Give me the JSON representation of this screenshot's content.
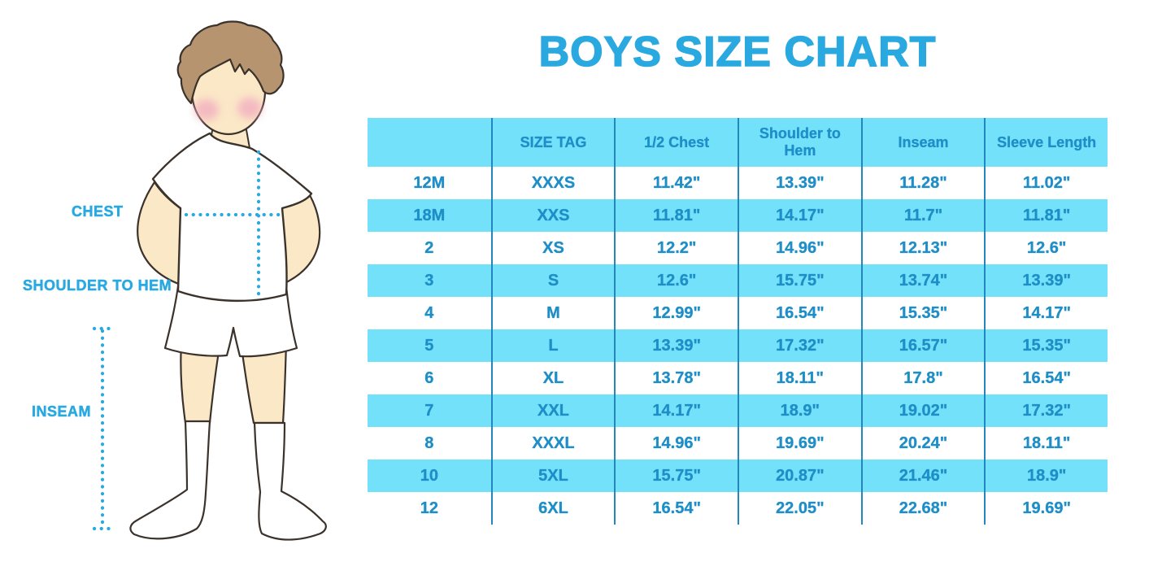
{
  "page": {
    "title": "BOYS SIZE CHART"
  },
  "theme": {
    "accent": "#29A9E0",
    "band": "#73E1FA",
    "line": "#2187BE",
    "text": "#1E8EC8",
    "skin": "#FBE8C7",
    "hair": "#B79470",
    "cheek": "#F2AEC0",
    "outline": "#3B332B"
  },
  "figure": {
    "description": "boy-measurement-illustration",
    "labels": {
      "chest": "CHEST",
      "shoulder_to_hem": "SHOULDER TO HEM",
      "inseam": "INSEAM"
    }
  },
  "chart_data": {
    "type": "table",
    "title": "BOYS SIZE CHART",
    "columns": [
      "",
      "SIZE TAG",
      "1/2 Chest",
      "Shoulder to Hem",
      "Inseam",
      "Sleeve Length"
    ],
    "rows": [
      [
        "12M",
        "XXXS",
        "11.42\"",
        "13.39\"",
        "11.28\"",
        "11.02\""
      ],
      [
        "18M",
        "XXS",
        "11.81\"",
        "14.17\"",
        "11.7\"",
        "11.81\""
      ],
      [
        "2",
        "XS",
        "12.2\"",
        "14.96\"",
        "12.13\"",
        "12.6\""
      ],
      [
        "3",
        "S",
        "12.6\"",
        "15.75\"",
        "13.74\"",
        "13.39\""
      ],
      [
        "4",
        "M",
        "12.99\"",
        "16.54\"",
        "15.35\"",
        "14.17\""
      ],
      [
        "5",
        "L",
        "13.39\"",
        "17.32\"",
        "16.57\"",
        "15.35\""
      ],
      [
        "6",
        "XL",
        "13.78\"",
        "18.11\"",
        "17.8\"",
        "16.54\""
      ],
      [
        "7",
        "XXL",
        "14.17\"",
        "18.9\"",
        "19.02\"",
        "17.32\""
      ],
      [
        "8",
        "XXXL",
        "14.96\"",
        "19.69\"",
        "20.24\"",
        "18.11\""
      ],
      [
        "10",
        "5XL",
        "15.75\"",
        "20.87\"",
        "21.46\"",
        "18.9\""
      ],
      [
        "12",
        "6XL",
        "16.54\"",
        "22.05\"",
        "22.68\"",
        "19.69\""
      ]
    ]
  }
}
